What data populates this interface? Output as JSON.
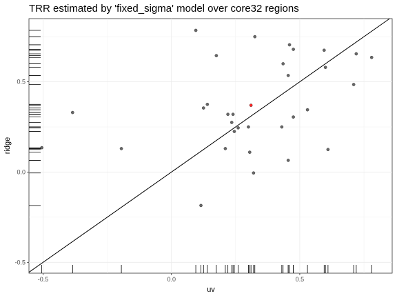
{
  "chart_data": {
    "type": "scatter",
    "title": "TRR estimated by 'fixed_sigma' model over core32 regions",
    "xlabel": "uv",
    "ylabel": "ridge",
    "xlim": [
      -0.555,
      0.86
    ],
    "ylim": [
      -0.56,
      0.85
    ],
    "x_ticks": [
      -0.5,
      0.0,
      0.5
    ],
    "x_tick_labels": [
      "-0.5",
      "0.0",
      "0.5"
    ],
    "y_ticks": [
      -0.5,
      0.0,
      0.5
    ],
    "y_tick_labels": [
      "-0.5",
      "0.0",
      "0.5"
    ],
    "grid": true,
    "reference_line": "y = x",
    "rug": true,
    "series": [
      {
        "points": [
          [
            -0.505,
            0.135
          ],
          [
            -0.385,
            0.33
          ],
          [
            -0.195,
            0.13
          ],
          [
            0.095,
            0.785
          ],
          [
            0.115,
            -0.185
          ],
          [
            0.125,
            0.355
          ],
          [
            0.14,
            0.375
          ],
          [
            0.175,
            0.645
          ],
          [
            0.21,
            0.13
          ],
          [
            0.22,
            0.32
          ],
          [
            0.235,
            0.275
          ],
          [
            0.24,
            0.32
          ],
          [
            0.245,
            0.225
          ],
          [
            0.26,
            0.245
          ],
          [
            0.3,
            0.25
          ],
          [
            0.305,
            0.11
          ],
          [
            0.32,
            -0.005
          ],
          [
            0.325,
            0.75
          ],
          [
            0.43,
            0.25
          ],
          [
            0.435,
            0.6
          ],
          [
            0.455,
            0.065
          ],
          [
            0.455,
            0.535
          ],
          [
            0.46,
            0.705
          ],
          [
            0.475,
            0.68
          ],
          [
            0.475,
            0.305
          ],
          [
            0.53,
            0.345
          ],
          [
            0.595,
            0.675
          ],
          [
            0.6,
            0.58
          ],
          [
            0.61,
            0.125
          ],
          [
            0.71,
            0.485
          ],
          [
            0.72,
            0.655
          ],
          [
            0.78,
            0.635
          ]
        ],
        "color": "#4d4d4d"
      },
      {
        "points": [
          [
            0.31,
            0.37
          ]
        ],
        "color": "#ff0000"
      }
    ]
  }
}
